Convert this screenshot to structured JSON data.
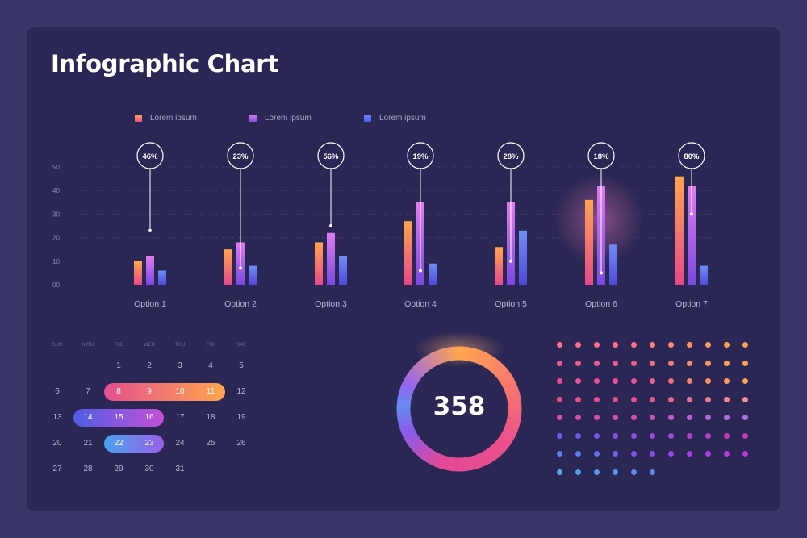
{
  "title": "Infographic Chart",
  "colors": {
    "background": "#2b2754",
    "series1": "#f07a6e",
    "series2": "#b45ee0",
    "series3": "#5f7cf0",
    "accent_orange": "#ffa64d",
    "accent_pink": "#e44f8e"
  },
  "legend": [
    {
      "label": "Lorem ipsum",
      "color": "#f26b6b"
    },
    {
      "label": "Lorem ipsum",
      "color": "#b45ee0"
    },
    {
      "label": "Lorem ipsum",
      "color": "#5f7cf0"
    }
  ],
  "chart_data": {
    "type": "bar",
    "categories": [
      "Option 1",
      "Option 2",
      "Option 3",
      "Option 4",
      "Option 5",
      "Option 6",
      "Option 7"
    ],
    "series": [
      {
        "values": [
          10,
          15,
          18,
          27,
          16,
          36,
          46
        ]
      },
      {
        "values": [
          12,
          18,
          22,
          35,
          35,
          42,
          42
        ]
      },
      {
        "values": [
          6,
          8,
          12,
          9,
          23,
          17,
          8
        ]
      }
    ],
    "percent_labels": [
      "46%",
      "23%",
      "56%",
      "19%",
      "28%",
      "18%",
      "80%"
    ],
    "marker_values": [
      23,
      7,
      25,
      6,
      10,
      5,
      30
    ],
    "y_ticks": [
      "00",
      "10",
      "20",
      "30",
      "40",
      "50"
    ],
    "ylim": [
      0,
      50
    ],
    "grid": true,
    "legend_position": "top-left"
  },
  "calendar": {
    "weekdays": [
      "SUN",
      "MON",
      "TUE",
      "WED",
      "THU",
      "FRI",
      "SAT"
    ],
    "weeks": [
      [
        "",
        "",
        "1",
        "2",
        "3",
        "4",
        "5"
      ],
      [
        "6",
        "7",
        "8",
        "9",
        "10",
        "11",
        "12"
      ],
      [
        "13",
        "14",
        "15",
        "16",
        "17",
        "18",
        "19"
      ],
      [
        "20",
        "21",
        "22",
        "23",
        "24",
        "25",
        "26"
      ],
      [
        "27",
        "28",
        "29",
        "30",
        "31",
        "",
        ""
      ]
    ],
    "highlights": [
      {
        "week": 1,
        "from": 2,
        "to": 5,
        "gradient": [
          "#e44f8e",
          "#ffa64d"
        ]
      },
      {
        "week": 2,
        "from": 1,
        "to": 3,
        "gradient": [
          "#4f5ee8",
          "#c44fd6"
        ]
      },
      {
        "week": 3,
        "from": 2,
        "to": 3,
        "gradient": [
          "#4aa3f0",
          "#9a5fe8"
        ]
      }
    ]
  },
  "donut": {
    "value": "358",
    "fill_fraction": 1.0
  },
  "dot_grid": {
    "rows": [
      [
        "#ff6f8a",
        "#ff6f8a",
        "#ff6f8a",
        "#ff6f8a",
        "#ff6f8a",
        "#ff7f78",
        "#ff8c6a",
        "#ff9a5e",
        "#ff9a5e",
        "#ffa050",
        "#ffa050"
      ],
      [
        "#f05a8f",
        "#f05a8f",
        "#f05a8f",
        "#f05a8f",
        "#f05a8f",
        "#f26a84",
        "#f57a78",
        "#f88a6c",
        "#fb9a60",
        "#ffa050",
        "#ffa050"
      ],
      [
        "#e84f94",
        "#e84f94",
        "#e84f94",
        "#e84f94",
        "#e84f94",
        "#ec5f88",
        "#f06f7c",
        "#f57f70",
        "#f98f64",
        "#ff9a56",
        "#ffa050"
      ],
      [
        "#e44f8e",
        "#e44f8e",
        "#e44f8e",
        "#e44f8e",
        "#e44f8e",
        "#e65a90",
        "#e86592",
        "#ea7094",
        "#ed7b96",
        "#f08698",
        "#f2919a"
      ],
      [
        "#d44fa8",
        "#d44fa8",
        "#d44fa8",
        "#d44fa8",
        "#d44fa8",
        "#cc55b8",
        "#c45bc8",
        "#bc61d4",
        "#b467dc",
        "#ac6de2",
        "#a473e8"
      ],
      [
        "#6a5cf0",
        "#6a5cf0",
        "#7558ea",
        "#8054e4",
        "#8b50de",
        "#964cd8",
        "#a148d2",
        "#ac44cc",
        "#b740c6",
        "#c23cc0",
        "#cd38ba"
      ],
      [
        "#5f7cf0",
        "#5f7cf0",
        "#6a6ef0",
        "#7560ee",
        "#8052ec",
        "#8b4cea",
        "#9648e6",
        "#a144e2",
        "#ac40de",
        "#b73cda",
        "#c238d6"
      ],
      [
        "#5aa2f2",
        "#5a9cf2",
        "#5a96f2",
        "#5a90f2",
        "#5a8af2",
        "#5a84f2"
      ]
    ]
  }
}
